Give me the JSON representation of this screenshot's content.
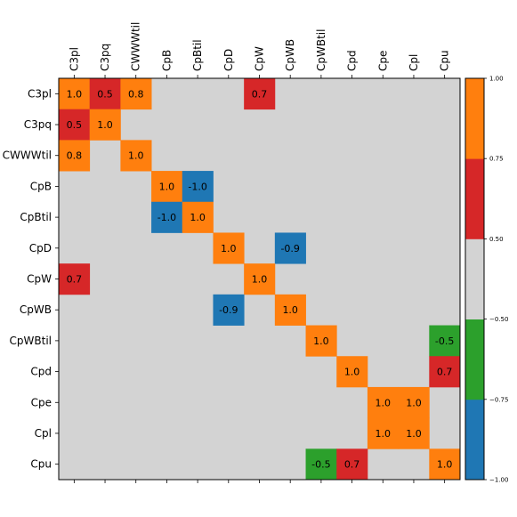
{
  "chart_data": {
    "type": "heatmap",
    "labels": [
      "C3pl",
      "C3pq",
      "CWWWtil",
      "CpB",
      "CpBtil",
      "CpD",
      "CpW",
      "CpWB",
      "CpWBtil",
      "Cpd",
      "Cpe",
      "Cpl",
      "Cpu"
    ],
    "cells": [
      {
        "row": 0,
        "col": 0,
        "value": 1.0,
        "label": "1.0"
      },
      {
        "row": 0,
        "col": 1,
        "value": 0.5,
        "label": "0.5"
      },
      {
        "row": 0,
        "col": 2,
        "value": 0.8,
        "label": "0.8"
      },
      {
        "row": 0,
        "col": 6,
        "value": 0.7,
        "label": "0.7"
      },
      {
        "row": 1,
        "col": 0,
        "value": 0.5,
        "label": "0.5"
      },
      {
        "row": 1,
        "col": 1,
        "value": 1.0,
        "label": "1.0"
      },
      {
        "row": 2,
        "col": 0,
        "value": 0.8,
        "label": "0.8"
      },
      {
        "row": 2,
        "col": 2,
        "value": 1.0,
        "label": "1.0"
      },
      {
        "row": 3,
        "col": 3,
        "value": 1.0,
        "label": "1.0"
      },
      {
        "row": 3,
        "col": 4,
        "value": -1.0,
        "label": "-1.0"
      },
      {
        "row": 4,
        "col": 3,
        "value": -1.0,
        "label": "-1.0"
      },
      {
        "row": 4,
        "col": 4,
        "value": 1.0,
        "label": "1.0"
      },
      {
        "row": 5,
        "col": 5,
        "value": 1.0,
        "label": "1.0"
      },
      {
        "row": 5,
        "col": 7,
        "value": -0.9,
        "label": "-0.9"
      },
      {
        "row": 6,
        "col": 0,
        "value": 0.7,
        "label": "0.7"
      },
      {
        "row": 6,
        "col": 6,
        "value": 1.0,
        "label": "1.0"
      },
      {
        "row": 7,
        "col": 5,
        "value": -0.9,
        "label": "-0.9"
      },
      {
        "row": 7,
        "col": 7,
        "value": 1.0,
        "label": "1.0"
      },
      {
        "row": 8,
        "col": 8,
        "value": 1.0,
        "label": "1.0"
      },
      {
        "row": 8,
        "col": 12,
        "value": -0.5,
        "label": "-0.5"
      },
      {
        "row": 9,
        "col": 9,
        "value": 1.0,
        "label": "1.0"
      },
      {
        "row": 9,
        "col": 12,
        "value": 0.7,
        "label": "0.7"
      },
      {
        "row": 10,
        "col": 10,
        "value": 1.0,
        "label": "1.0"
      },
      {
        "row": 10,
        "col": 11,
        "value": 1.0,
        "label": "1.0"
      },
      {
        "row": 11,
        "col": 10,
        "value": 1.0,
        "label": "1.0"
      },
      {
        "row": 11,
        "col": 11,
        "value": 1.0,
        "label": "1.0"
      },
      {
        "row": 12,
        "col": 8,
        "value": -0.5,
        "label": "-0.5"
      },
      {
        "row": 12,
        "col": 9,
        "value": 0.7,
        "label": "0.7"
      },
      {
        "row": 12,
        "col": 12,
        "value": 1.0,
        "label": "1.0"
      }
    ],
    "background_color": "#d3d3d3",
    "colorbar": {
      "bins": [
        {
          "color": "#1f77b4"
        },
        {
          "color": "#2ca02c"
        },
        {
          "color": "#d3d3d3"
        },
        {
          "color": "#d62728"
        },
        {
          "color": "#ff7f0e"
        }
      ],
      "ticks": [
        {
          "value": -1.0,
          "label": "−1.00"
        },
        {
          "value": -0.75,
          "label": "−0.75"
        },
        {
          "value": -0.5,
          "label": "−0.50"
        },
        {
          "value": 0.5,
          "label": "0.50"
        },
        {
          "value": 0.75,
          "label": "0.75"
        },
        {
          "value": 1.0,
          "label": "1.00"
        }
      ]
    }
  }
}
